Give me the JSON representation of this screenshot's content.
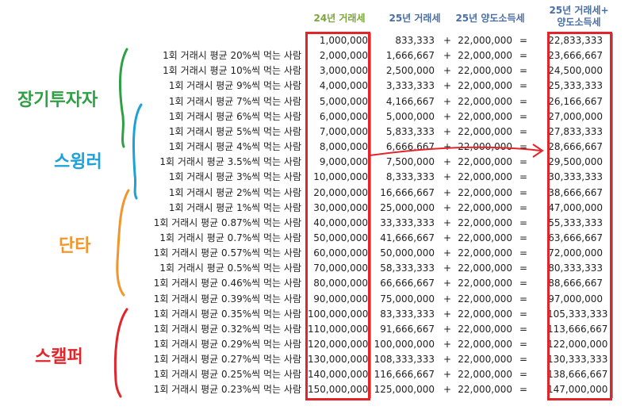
{
  "headers": {
    "tax24": "24년 거래세",
    "tax25": "25년 거래세",
    "cgt25": "25년 양도소득세",
    "sum_line1": "25년 거래세+",
    "sum_line2": "양도소득세"
  },
  "groups": {
    "long_term": "장기투자자",
    "swinger": "스윙러",
    "day_trader": "단타",
    "scalper": "스캘퍼"
  },
  "rows": [
    {
      "desc": "",
      "tax24": "1,000,000",
      "tax25": "833,333",
      "plus": "+",
      "cgt": "22,000,000",
      "eq": "=",
      "sum": "22,833,333"
    },
    {
      "desc": "1회 거래시 평균 20%씩 먹는 사람",
      "tax24": "2,000,000",
      "tax25": "1,666,667",
      "plus": "+",
      "cgt": "22,000,000",
      "eq": "=",
      "sum": "23,666,667"
    },
    {
      "desc": "1회 거래시 평균 10%씩 먹는 사람",
      "tax24": "3,000,000",
      "tax25": "2,500,000",
      "plus": "+",
      "cgt": "22,000,000",
      "eq": "=",
      "sum": "24,500,000"
    },
    {
      "desc": "1회 거래시 평균 9%씩 먹는 사람",
      "tax24": "4,000,000",
      "tax25": "3,333,333",
      "plus": "+",
      "cgt": "22,000,000",
      "eq": "=",
      "sum": "25,333,333"
    },
    {
      "desc": "1회 거래시 평균 7%씩 먹는 사람",
      "tax24": "5,000,000",
      "tax25": "4,166,667",
      "plus": "+",
      "cgt": "22,000,000",
      "eq": "=",
      "sum": "26,166,667"
    },
    {
      "desc": "1회 거래시 평균 6%씩 먹는 사람",
      "tax24": "6,000,000",
      "tax25": "5,000,000",
      "plus": "+",
      "cgt": "22,000,000",
      "eq": "=",
      "sum": "27,000,000"
    },
    {
      "desc": "1회 거래시 평균 5%씩 먹는 사람",
      "tax24": "7,000,000",
      "tax25": "5,833,333",
      "plus": "+",
      "cgt": "22,000,000",
      "eq": "=",
      "sum": "27,833,333"
    },
    {
      "desc": "1회 거래시 평균 4%씩 먹는 사람",
      "tax24": "8,000,000",
      "tax25": "6,666,667",
      "plus": "+",
      "cgt": "22,000,000",
      "eq": "=",
      "sum": "28,666,667"
    },
    {
      "desc": "1회 거래시 평균 3.5%씩 먹는 사람",
      "tax24": "9,000,000",
      "tax25": "7,500,000",
      "plus": "+",
      "cgt": "22,000,000",
      "eq": "=",
      "sum": "29,500,000"
    },
    {
      "desc": "1회 거래시 평균 3%씩 먹는 사람",
      "tax24": "10,000,000",
      "tax25": "8,333,333",
      "plus": "+",
      "cgt": "22,000,000",
      "eq": "=",
      "sum": "30,333,333"
    },
    {
      "desc": "1회 거래시 평균 2%씩 먹는 사람",
      "tax24": "20,000,000",
      "tax25": "16,666,667",
      "plus": "+",
      "cgt": "22,000,000",
      "eq": "=",
      "sum": "38,666,667"
    },
    {
      "desc": "1회 거래시 평균 1%씩 먹는 사람",
      "tax24": "30,000,000",
      "tax25": "25,000,000",
      "plus": "+",
      "cgt": "22,000,000",
      "eq": "=",
      "sum": "47,000,000"
    },
    {
      "desc": "1회 거래시 평균 0.87%씩 먹는 사람",
      "tax24": "40,000,000",
      "tax25": "33,333,333",
      "plus": "+",
      "cgt": "22,000,000",
      "eq": "=",
      "sum": "55,333,333"
    },
    {
      "desc": "1회 거래시 평균 0.7%씩 먹는 사람",
      "tax24": "50,000,000",
      "tax25": "41,666,667",
      "plus": "+",
      "cgt": "22,000,000",
      "eq": "=",
      "sum": "63,666,667"
    },
    {
      "desc": "1회 거래시 평균 0.57%씩 먹는 사람",
      "tax24": "60,000,000",
      "tax25": "50,000,000",
      "plus": "+",
      "cgt": "22,000,000",
      "eq": "=",
      "sum": "72,000,000"
    },
    {
      "desc": "1회 거래시 평균 0.5%씩 먹는 사람",
      "tax24": "70,000,000",
      "tax25": "58,333,333",
      "plus": "+",
      "cgt": "22,000,000",
      "eq": "=",
      "sum": "80,333,333"
    },
    {
      "desc": "1회 거래시 평균 0.46%씩 먹는 사람",
      "tax24": "80,000,000",
      "tax25": "66,666,667",
      "plus": "+",
      "cgt": "22,000,000",
      "eq": "=",
      "sum": "88,666,667"
    },
    {
      "desc": "1회 거래시 평균 0.39%씩 먹는 사람",
      "tax24": "90,000,000",
      "tax25": "75,000,000",
      "plus": "+",
      "cgt": "22,000,000",
      "eq": "=",
      "sum": "97,000,000"
    },
    {
      "desc": "1회 거래시 평균 0.35%씩 먹는 사람",
      "tax24": "100,000,000",
      "tax25": "83,333,333",
      "plus": "+",
      "cgt": "22,000,000",
      "eq": "=",
      "sum": "105,333,333"
    },
    {
      "desc": "1회 거래시 평균 0.32%씩 먹는 사람",
      "tax24": "110,000,000",
      "tax25": "91,666,667",
      "plus": "+",
      "cgt": "22,000,000",
      "eq": "=",
      "sum": "113,666,667"
    },
    {
      "desc": "1회 거래시 평균 0.29%씩 먹는 사람",
      "tax24": "120,000,000",
      "tax25": "100,000,000",
      "plus": "+",
      "cgt": "22,000,000",
      "eq": "=",
      "sum": "122,000,000"
    },
    {
      "desc": "1회 거래시 평균 0.27%씩 먹는 사람",
      "tax24": "130,000,000",
      "tax25": "108,333,333",
      "plus": "+",
      "cgt": "22,000,000",
      "eq": "=",
      "sum": "130,333,333"
    },
    {
      "desc": "1회 거래시 평균 0.25%씩 먹는 사람",
      "tax24": "140,000,000",
      "tax25": "116,666,667",
      "plus": "+",
      "cgt": "22,000,000",
      "eq": "=",
      "sum": "138,666,667"
    },
    {
      "desc": "1회 거래시 평균 0.23%씩 먹는 사람",
      "tax24": "150,000,000",
      "tax25": "125,000,000",
      "plus": "+",
      "cgt": "22,000,000",
      "eq": "=",
      "sum": "147,000,000"
    }
  ],
  "colors": {
    "highlight_box": "#e0262b",
    "long_term": "#2ea043",
    "swinger": "#1da1d6",
    "day_trader": "#f0962a",
    "scalper": "#e0262b"
  }
}
